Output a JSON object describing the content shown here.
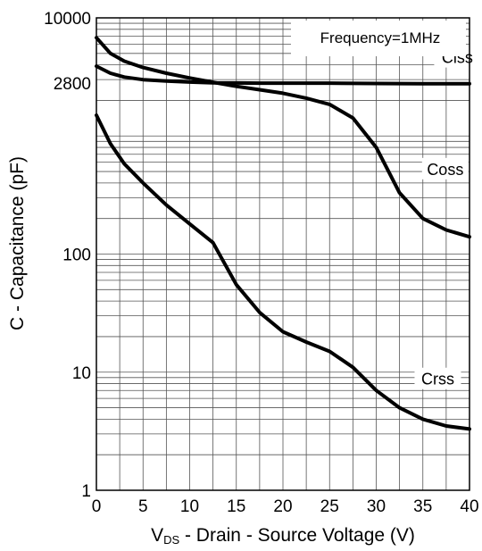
{
  "chart_data": {
    "type": "line",
    "title": "",
    "xlabel": {
      "prefix": "V",
      "subscript": "DS",
      "suffix": " - Drain - Source Voltage (V)"
    },
    "ylabel": "C - Capacitance (pF)",
    "xlim": [
      0,
      40
    ],
    "ylim": [
      1,
      10000
    ],
    "yscale": "log",
    "grid": true,
    "x_ticks": [
      0,
      5,
      10,
      15,
      20,
      25,
      30,
      35,
      40
    ],
    "x_tick_labels": [
      "0",
      "5",
      "10",
      "15",
      "20",
      "25",
      "30",
      "35",
      "40"
    ],
    "y_ticks": [
      1,
      10,
      100,
      2800,
      10000
    ],
    "y_tick_labels": [
      "1",
      "10",
      "100",
      "2800",
      "10000"
    ],
    "annotation": "Frequency=1MHz",
    "series": [
      {
        "name": "Ciss",
        "x": [
          0,
          1.5,
          3,
          5,
          7.5,
          10,
          12.5,
          15,
          17.5,
          20,
          25,
          30,
          35,
          40
        ],
        "y": [
          3900,
          3400,
          3150,
          3000,
          2920,
          2860,
          2820,
          2810,
          2800,
          2800,
          2800,
          2780,
          2770,
          2770
        ]
      },
      {
        "name": "Coss",
        "x": [
          0,
          1.5,
          3,
          5,
          7.5,
          10,
          12.5,
          15,
          17.5,
          20,
          22.5,
          25,
          27.5,
          30,
          32.5,
          35,
          37.5,
          40
        ],
        "y": [
          6800,
          5000,
          4300,
          3800,
          3400,
          3100,
          2850,
          2630,
          2460,
          2300,
          2090,
          1850,
          1420,
          800,
          330,
          200,
          160,
          140
        ]
      },
      {
        "name": "Crss",
        "x": [
          0,
          1.5,
          3,
          5,
          7.5,
          10,
          12.5,
          15,
          17.5,
          20,
          22.5,
          25,
          27.5,
          30,
          32.5,
          35,
          37.5,
          40
        ],
        "y": [
          1500,
          860,
          580,
          400,
          260,
          180,
          125,
          55,
          32,
          22,
          18,
          15,
          11,
          7,
          5,
          4,
          3.5,
          3.3
        ]
      }
    ]
  }
}
